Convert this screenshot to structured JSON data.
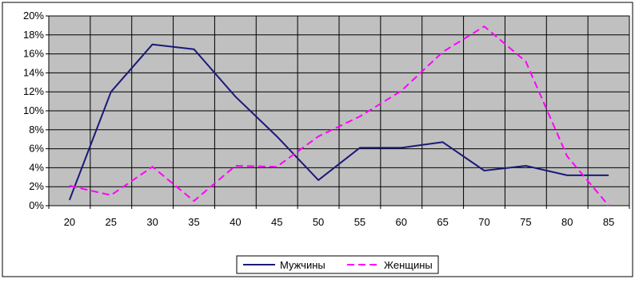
{
  "chart_data": {
    "type": "line",
    "title": "",
    "xlabel": "",
    "ylabel": "",
    "x": [
      20,
      25,
      30,
      35,
      40,
      45,
      50,
      55,
      60,
      65,
      70,
      75,
      80,
      85
    ],
    "x_tick_labels": [
      "20",
      "25",
      "30",
      "35",
      "40",
      "45",
      "50",
      "55",
      "60",
      "65",
      "70",
      "75",
      "80",
      "85"
    ],
    "ylim": [
      0,
      20
    ],
    "y_tick_labels": [
      "0%",
      "2%",
      "4%",
      "6%",
      "8%",
      "10%",
      "12%",
      "14%",
      "16%",
      "18%",
      "20%"
    ],
    "grid": true,
    "legend_position": "bottom",
    "series": [
      {
        "name": "Мужчины",
        "color": "#1a1a7a",
        "dash": "solid",
        "values": [
          0.6,
          12.0,
          17.0,
          16.5,
          11.5,
          7.3,
          2.7,
          6.1,
          6.1,
          6.7,
          3.7,
          4.2,
          3.2,
          3.2
        ]
      },
      {
        "name": "Женщины",
        "color": "#ff00ff",
        "dash": "dashed",
        "values": [
          2.1,
          1.1,
          4.1,
          0.5,
          4.2,
          4.1,
          7.3,
          9.4,
          12.1,
          16.2,
          18.9,
          15.2,
          5.2,
          0.0
        ]
      }
    ],
    "colors": {
      "plot_background": "#c0c0c0",
      "grid_line": "#000000"
    }
  }
}
